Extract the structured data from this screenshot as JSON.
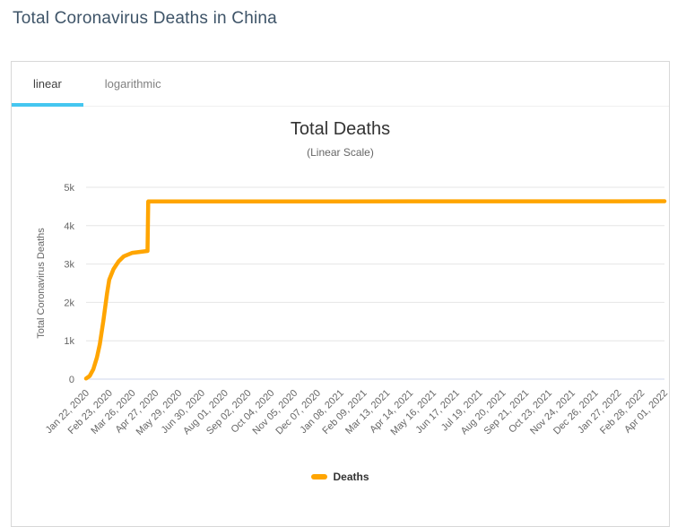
{
  "page": {
    "title": "Total Coronavirus Deaths in China"
  },
  "tabs": {
    "linear": "linear",
    "logarithmic": "logarithmic"
  },
  "colors": {
    "series_orange": "#FFA500",
    "active_tab_underline": "#45c6f0",
    "gridline": "#e6e6e6",
    "axis_line": "#ccd6eb",
    "axis_text": "#666666",
    "title_text": "#333333"
  },
  "chart_data": {
    "type": "line",
    "title": "Total Deaths",
    "subtitle": "(Linear Scale)",
    "xlabel": "",
    "ylabel": "Total Coronavirus Deaths",
    "ylim": [
      0,
      5000
    ],
    "ytick_labels": [
      "0",
      "1k",
      "2k",
      "3k",
      "4k",
      "5k"
    ],
    "grid": "horizontal",
    "legend_position": "bottom",
    "x_range_days": [
      0,
      800
    ],
    "x_tick_labels": [
      "Jan 22, 2020",
      "Feb 23, 2020",
      "Mar 26, 2020",
      "Apr 27, 2020",
      "May 29, 2020",
      "Jun 30, 2020",
      "Aug 01, 2020",
      "Sep 02, 2020",
      "Oct 04, 2020",
      "Nov 05, 2020",
      "Dec 07, 2020",
      "Jan 08, 2021",
      "Feb 09, 2021",
      "Mar 13, 2021",
      "Apr 14, 2021",
      "May 16, 2021",
      "Jun 17, 2021",
      "Jul 19, 2021",
      "Aug 20, 2021",
      "Sep 21, 2021",
      "Oct 23, 2021",
      "Nov 24, 2021",
      "Dec 26, 2021",
      "Jan 27, 2022",
      "Feb 28, 2022",
      "Apr 01, 2022"
    ],
    "series": [
      {
        "name": "Deaths",
        "color": "#FFA500",
        "points": [
          {
            "date": "Jan 22, 2020",
            "day": 0,
            "value": 17
          },
          {
            "date": "Jan 27, 2020",
            "day": 5,
            "value": 82
          },
          {
            "date": "Feb 01, 2020",
            "day": 10,
            "value": 259
          },
          {
            "date": "Feb 06, 2020",
            "day": 15,
            "value": 565
          },
          {
            "date": "Feb 10, 2020",
            "day": 19,
            "value": 908
          },
          {
            "date": "Feb 15, 2020",
            "day": 24,
            "value": 1526
          },
          {
            "date": "Feb 20, 2020",
            "day": 29,
            "value": 2238
          },
          {
            "date": "Feb 23, 2020",
            "day": 32,
            "value": 2592
          },
          {
            "date": "Feb 29, 2020",
            "day": 38,
            "value": 2870
          },
          {
            "date": "Mar 07, 2020",
            "day": 45,
            "value": 3070
          },
          {
            "date": "Mar 14, 2020",
            "day": 52,
            "value": 3199
          },
          {
            "date": "Mar 26, 2020",
            "day": 64,
            "value": 3292
          },
          {
            "date": "Apr 16, 2020",
            "day": 85,
            "value": 3342
          },
          {
            "date": "Apr 17, 2020",
            "day": 86,
            "value": 4632
          },
          {
            "date": "May 29, 2020",
            "day": 128,
            "value": 4634
          },
          {
            "date": "Jan 08, 2021",
            "day": 352,
            "value": 4634
          },
          {
            "date": "Apr 14, 2021",
            "day": 448,
            "value": 4636
          },
          {
            "date": "Jan 27, 2022",
            "day": 736,
            "value": 4636
          },
          {
            "date": "Apr 01, 2022",
            "day": 800,
            "value": 4638
          }
        ]
      }
    ]
  }
}
